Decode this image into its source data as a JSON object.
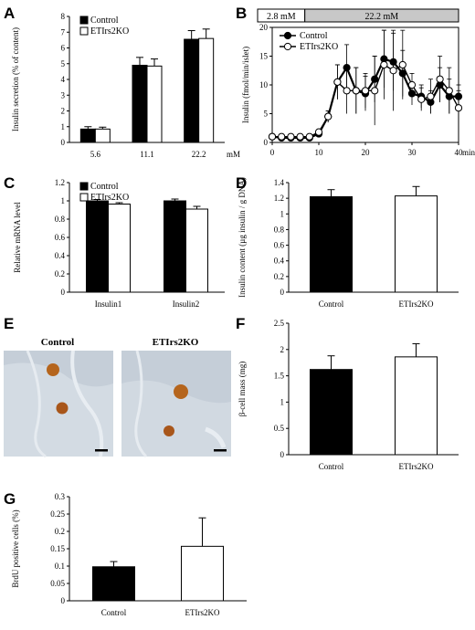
{
  "panels": [
    {
      "letter": "A"
    },
    {
      "letter": "B"
    },
    {
      "letter": "C"
    },
    {
      "letter": "D"
    },
    {
      "letter": "E"
    },
    {
      "letter": "F"
    },
    {
      "letter": "G"
    }
  ],
  "colors": {
    "control": "#000000",
    "etirs2ko": "#ffffff",
    "glucose_bar_low": "#ffffff",
    "glucose_bar_high": "#c8c8c8",
    "tissue": "#c9d2dc",
    "islet": "#b5651d"
  },
  "panel_e": {
    "labels": [
      "Control",
      "ETIrs2KO"
    ]
  },
  "chart_data": [
    {
      "id": "A",
      "type": "bar",
      "categories": [
        "5.6",
        "11.1",
        "22.2"
      ],
      "unit_label": "mM",
      "ylabel": "Insulin secretion (% of content)",
      "ylim": [
        0,
        8
      ],
      "yticks": [
        "0",
        "1",
        "2",
        "3",
        "4",
        "5",
        "6",
        "7",
        "8"
      ],
      "legend": "top-left",
      "series": [
        {
          "name": "Control",
          "values": [
            0.85,
            4.9,
            6.55
          ],
          "errors": [
            0.15,
            0.5,
            0.55
          ]
        },
        {
          "name": "ETIrs2KO",
          "values": [
            0.85,
            4.85,
            6.6
          ],
          "errors": [
            0.12,
            0.45,
            0.6
          ]
        }
      ]
    },
    {
      "id": "B",
      "type": "line",
      "ylabel": "Insulin (fmol/min/islet)",
      "xunit": "min",
      "ylim": [
        0,
        20
      ],
      "yticks": [
        "0",
        "5",
        "10",
        "15",
        "20"
      ],
      "xlim": [
        0,
        40
      ],
      "xticks": [
        "0",
        "10",
        "20",
        "30",
        "40"
      ],
      "glucose_bar": [
        {
          "label": "2.8 mM",
          "from": 0,
          "to": 7
        },
        {
          "label": "22.2 mM",
          "from": 7,
          "to": 40
        }
      ],
      "legend": "top-left",
      "x": [
        0,
        2,
        4,
        6,
        8,
        10,
        12,
        14,
        16,
        18,
        20,
        22,
        24,
        26,
        28,
        30,
        32,
        34,
        36,
        38,
        40
      ],
      "series": [
        {
          "name": "Control",
          "values": [
            1,
            0.8,
            0.8,
            0.8,
            0.8,
            1.5,
            4.5,
            10.5,
            13,
            9,
            8.5,
            11,
            14.5,
            14,
            12,
            8.5,
            8,
            7,
            10,
            8,
            8
          ],
          "errors": [
            0.4,
            0.3,
            0.3,
            0.3,
            0.3,
            0.5,
            1,
            3,
            4,
            4,
            3,
            4,
            5,
            5,
            4,
            2,
            2,
            2,
            3,
            3,
            2
          ]
        },
        {
          "name": "ETIrs2KO",
          "values": [
            1,
            1,
            1,
            1,
            1,
            1.8,
            4.5,
            10.5,
            9,
            9,
            9,
            9,
            13.5,
            12.5,
            13.5,
            10,
            7.5,
            8,
            11,
            9,
            6
          ],
          "errors": [
            0.4,
            0.3,
            0.3,
            0.3,
            0.3,
            0.5,
            1,
            3,
            4,
            4,
            3,
            6,
            6,
            7,
            6,
            2,
            2,
            3,
            4,
            4,
            3
          ]
        }
      ]
    },
    {
      "id": "C",
      "type": "bar",
      "categories": [
        "Insulin1",
        "Insulin2"
      ],
      "ylabel": "Relative mRNA level",
      "ylim": [
        0,
        1.2
      ],
      "yticks": [
        "0",
        "0.2",
        "0.4",
        "0.6",
        "0.8",
        "1",
        "1.2"
      ],
      "legend": "top-left",
      "series": [
        {
          "name": "Control",
          "values": [
            1.0,
            1.0
          ],
          "errors": [
            0.015,
            0.02
          ]
        },
        {
          "name": "ETIrs2KO",
          "values": [
            0.965,
            0.91
          ],
          "errors": [
            0.015,
            0.03
          ]
        }
      ]
    },
    {
      "id": "D",
      "type": "bar",
      "categories": [
        "Control",
        "ETIrs2KO"
      ],
      "ylabel": "Insulin content (µg insulin / g DNA)",
      "ylim": [
        0,
        1.4
      ],
      "yticks": [
        "0",
        "0.2",
        "0.4",
        "0.6",
        "0.8",
        "1",
        "1.2",
        "1.4"
      ],
      "values": [
        1.22,
        1.23
      ],
      "errors": [
        0.09,
        0.12
      ]
    },
    {
      "id": "F",
      "type": "bar",
      "categories": [
        "Control",
        "ETIrs2KO"
      ],
      "ylabel": "β-cell mass (mg)",
      "ylim": [
        0,
        2.5
      ],
      "yticks": [
        "0",
        "0.5",
        "1",
        "1.5",
        "2",
        "2.5"
      ],
      "values": [
        1.62,
        1.86
      ],
      "errors": [
        0.26,
        0.25
      ]
    },
    {
      "id": "G",
      "type": "bar",
      "categories": [
        "Control",
        "ETIrs2KO"
      ],
      "ylabel": "BrdU positive cells (%)",
      "ylim": [
        0,
        0.3
      ],
      "yticks": [
        "0",
        "0.05",
        "0.1",
        "0.15",
        "0.2",
        "0.25",
        "0.3"
      ],
      "values": [
        0.098,
        0.157
      ],
      "errors": [
        0.015,
        0.082
      ]
    }
  ]
}
